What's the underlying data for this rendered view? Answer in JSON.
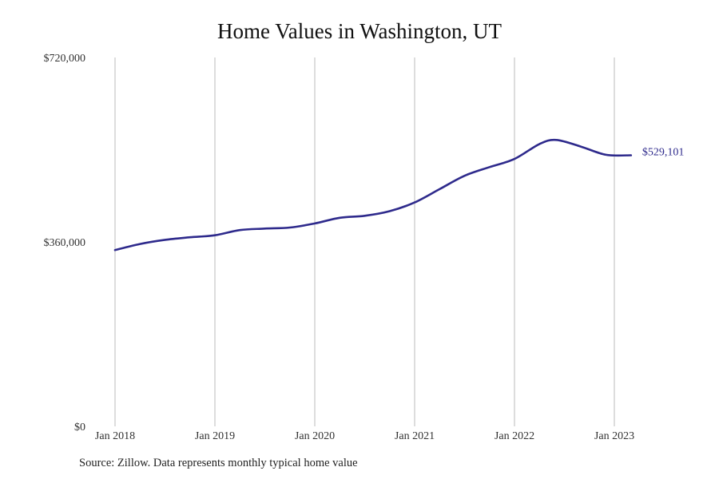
{
  "title": "Home Values in Washington, UT",
  "source": "Source: Zillow. Data represents monthly typical home value",
  "colors": {
    "line": "#2e2a8c",
    "grid": "#bbbbbb",
    "text": "#333333"
  },
  "chart_data": {
    "type": "line",
    "title": "Home Values in Washington, UT",
    "xlabel": "",
    "ylabel": "",
    "ylim": [
      0,
      720000
    ],
    "xlim": [
      "2018-01",
      "2023-03"
    ],
    "yticks": [
      0,
      360000,
      720000
    ],
    "ytick_labels": [
      "$0",
      "$360,000",
      "$720,000"
    ],
    "xticks": [
      "2018-01",
      "2019-01",
      "2020-01",
      "2021-01",
      "2022-01",
      "2023-01"
    ],
    "xtick_labels": [
      "Jan 2018",
      "Jan 2019",
      "Jan 2020",
      "Jan 2021",
      "Jan 2022",
      "Jan 2023"
    ],
    "grid": {
      "vertical": true,
      "horizontal": false
    },
    "end_label": "$529,101",
    "series": [
      {
        "points": [
          [
            "2018-01",
            344000
          ],
          [
            "2018-04",
            356000
          ],
          [
            "2018-07",
            364000
          ],
          [
            "2018-10",
            369000
          ],
          [
            "2019-01",
            373000
          ],
          [
            "2019-04",
            383000
          ],
          [
            "2019-07",
            386000
          ],
          [
            "2019-10",
            388000
          ],
          [
            "2020-01",
            396000
          ],
          [
            "2020-04",
            407000
          ],
          [
            "2020-07",
            411000
          ],
          [
            "2020-10",
            420000
          ],
          [
            "2021-01",
            437000
          ],
          [
            "2021-04",
            463000
          ],
          [
            "2021-07",
            489000
          ],
          [
            "2021-10",
            506000
          ],
          [
            "2022-01",
            522000
          ],
          [
            "2022-04",
            551000
          ],
          [
            "2022-06",
            559000
          ],
          [
            "2022-09",
            546000
          ],
          [
            "2022-12",
            530000
          ],
          [
            "2023-03",
            529101
          ]
        ]
      }
    ]
  }
}
